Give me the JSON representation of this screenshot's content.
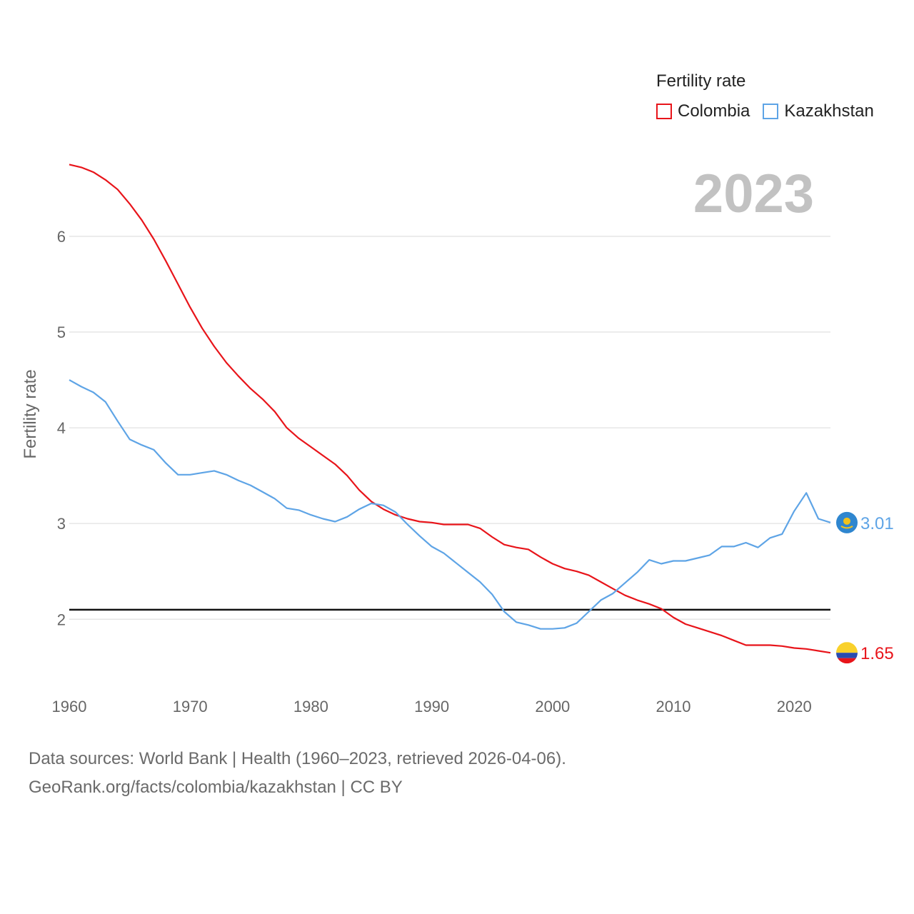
{
  "chart_data": {
    "type": "line",
    "legend_title": "Fertility rate",
    "ylabel": "Fertility rate",
    "xlabel": "",
    "year_label": "2023",
    "xlim": [
      1960,
      2023
    ],
    "ylim": [
      1.45,
      6.85
    ],
    "x_ticks": [
      1960,
      1970,
      1980,
      1990,
      2000,
      2010,
      2020
    ],
    "y_ticks": [
      2,
      3,
      4,
      5,
      6
    ],
    "reference_line": 2.1,
    "x": [
      1960,
      1961,
      1962,
      1963,
      1964,
      1965,
      1966,
      1967,
      1968,
      1969,
      1970,
      1971,
      1972,
      1973,
      1974,
      1975,
      1976,
      1977,
      1978,
      1979,
      1980,
      1981,
      1982,
      1983,
      1984,
      1985,
      1986,
      1987,
      1988,
      1989,
      1990,
      1991,
      1992,
      1993,
      1994,
      1995,
      1996,
      1997,
      1998,
      1999,
      2000,
      2001,
      2002,
      2003,
      2004,
      2005,
      2006,
      2007,
      2008,
      2009,
      2010,
      2011,
      2012,
      2013,
      2014,
      2015,
      2016,
      2017,
      2018,
      2019,
      2020,
      2021,
      2022,
      2023
    ],
    "series": [
      {
        "name": "Colombia",
        "color": "#e8141a",
        "end_label": "1.65",
        "values": [
          6.75,
          6.72,
          6.67,
          6.59,
          6.49,
          6.34,
          6.17,
          5.97,
          5.74,
          5.5,
          5.26,
          5.04,
          4.85,
          4.68,
          4.54,
          4.41,
          4.3,
          4.17,
          4.0,
          3.89,
          3.8,
          3.71,
          3.62,
          3.5,
          3.35,
          3.23,
          3.15,
          3.09,
          3.05,
          3.02,
          3.01,
          2.99,
          2.99,
          2.99,
          2.95,
          2.86,
          2.78,
          2.75,
          2.73,
          2.65,
          2.58,
          2.53,
          2.5,
          2.46,
          2.39,
          2.32,
          2.25,
          2.2,
          2.16,
          2.11,
          2.02,
          1.95,
          1.91,
          1.87,
          1.83,
          1.78,
          1.73,
          1.73,
          1.73,
          1.72,
          1.7,
          1.69,
          1.67,
          1.65
        ]
      },
      {
        "name": "Kazakhstan",
        "color": "#5ea4e6",
        "end_label": "3.01",
        "values": [
          4.5,
          4.43,
          4.37,
          4.27,
          4.07,
          3.88,
          3.82,
          3.77,
          3.63,
          3.51,
          3.51,
          3.53,
          3.55,
          3.51,
          3.45,
          3.4,
          3.33,
          3.26,
          3.16,
          3.14,
          3.09,
          3.05,
          3.02,
          3.07,
          3.15,
          3.21,
          3.19,
          3.12,
          2.99,
          2.87,
          2.76,
          2.69,
          2.59,
          2.49,
          2.39,
          2.26,
          2.08,
          1.97,
          1.94,
          1.9,
          1.9,
          1.91,
          1.96,
          2.08,
          2.2,
          2.27,
          2.38,
          2.49,
          2.62,
          2.58,
          2.61,
          2.61,
          2.64,
          2.67,
          2.76,
          2.76,
          2.8,
          2.75,
          2.85,
          2.89,
          3.13,
          3.32,
          3.05,
          3.01
        ]
      }
    ]
  },
  "footer": {
    "line1": "Data sources: World Bank | Health (1960–2023, retrieved 2026-04-06).",
    "line2": "GeoRank.org/facts/colombia/kazakhstan | CC BY"
  },
  "flags": {
    "colombia": "colombia-flag-icon",
    "kazakhstan": "kazakhstan-flag-icon"
  }
}
